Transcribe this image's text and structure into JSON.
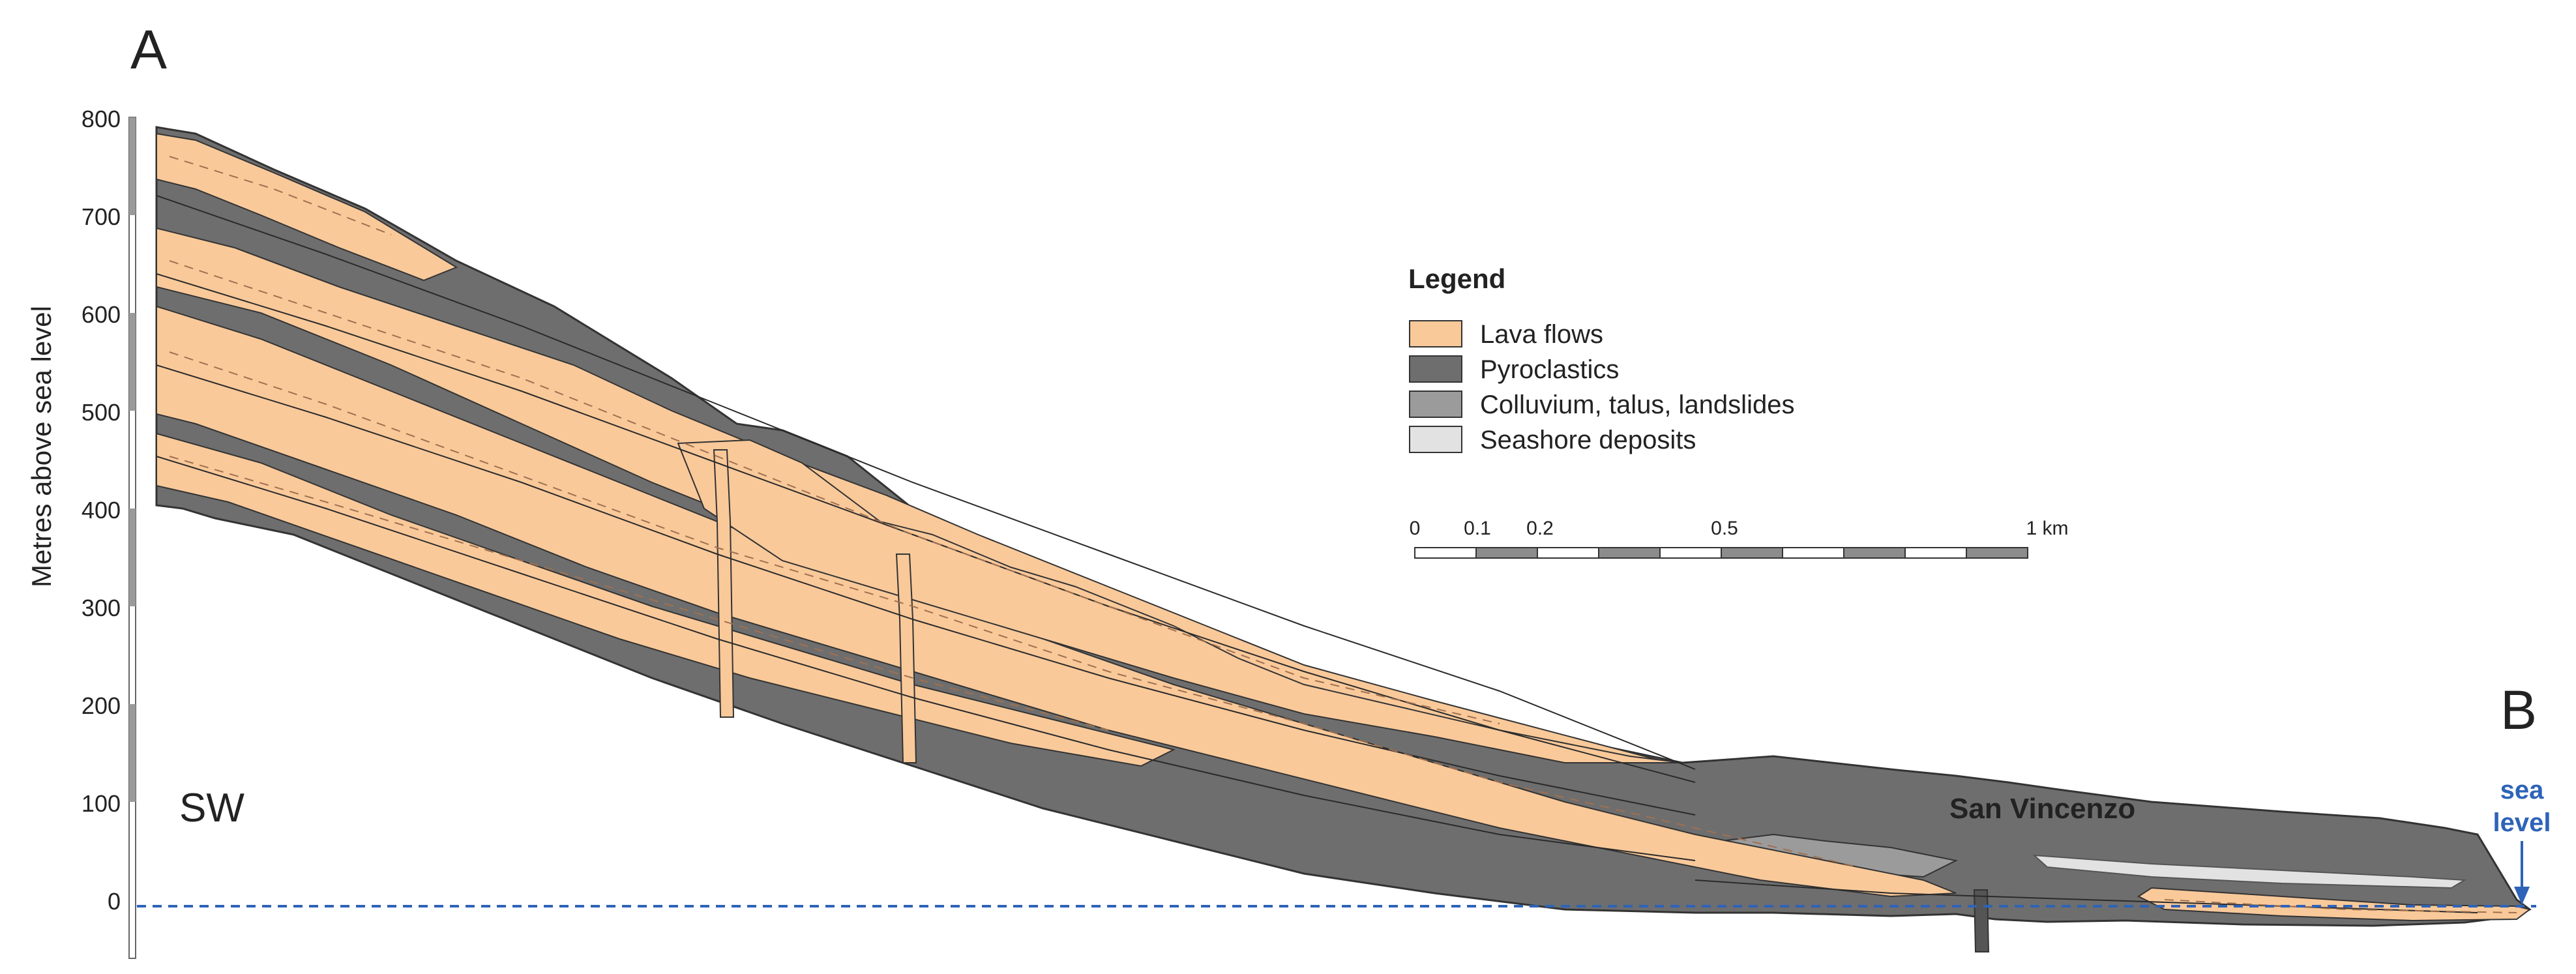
{
  "labels": {
    "section_start": "A",
    "section_end": "B",
    "direction": "SW",
    "town": "San Vincenzo",
    "sea_level_line1": "sea",
    "sea_level_line2": "level"
  },
  "y_axis": {
    "label": "Metres above sea level",
    "ticks": [
      "800",
      "700",
      "600",
      "500",
      "400",
      "300",
      "200",
      "100",
      "0"
    ]
  },
  "legend": {
    "title": "Legend",
    "items": [
      {
        "label": "Lava flows",
        "color": "#f9c99a"
      },
      {
        "label": "Pyroclastics",
        "color": "#6e6e6e"
      },
      {
        "label": "Colluvium, talus, landslides",
        "color": "#9b9b9b"
      },
      {
        "label": "Seashore deposits",
        "color": "#e2e2e2"
      }
    ]
  },
  "scale_bar": {
    "labels": [
      "0",
      "0.1",
      "0.2",
      "0.5",
      "1 km"
    ]
  },
  "colors": {
    "lava": "#f9c99a",
    "pyroclastics": "#6e6e6e",
    "colluvium": "#9b9b9b",
    "seashore": "#e2e2e2",
    "sea_level": "#2e63b8"
  }
}
